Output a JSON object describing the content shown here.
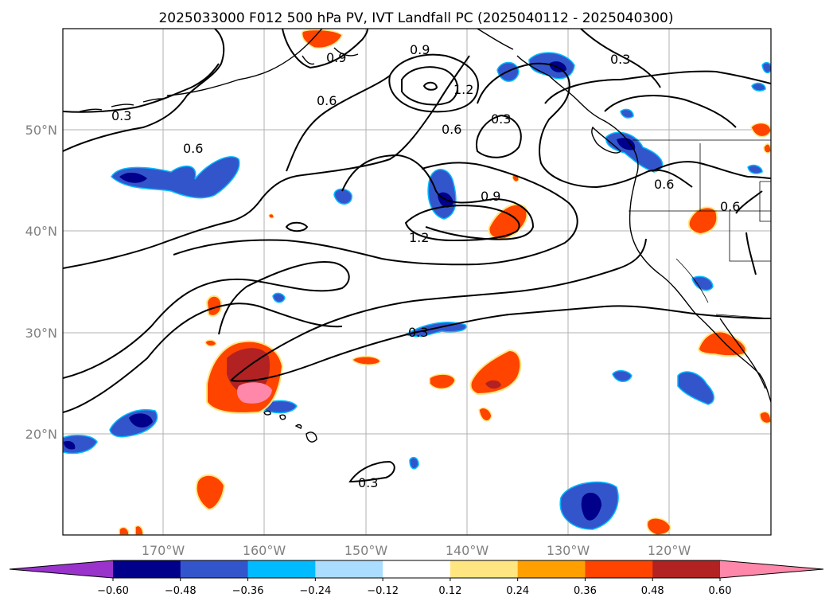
{
  "title": "2025033000 F012 500 hPa PV, IVT Landfall PC (2025040112 - 2025040300)",
  "lat_ticks": [
    "50°N",
    "40°N",
    "30°N",
    "20°N"
  ],
  "lon_ticks": [
    "170°W",
    "160°W",
    "150°W",
    "140°W",
    "130°W",
    "120°W"
  ],
  "colorbar": {
    "ticks": [
      "−0.60",
      "−0.48",
      "−0.36",
      "−0.24",
      "−0.12",
      "0.12",
      "0.24",
      "0.36",
      "0.48",
      "0.60"
    ],
    "colors": [
      "#9933cc",
      "#00008b",
      "#3355cc",
      "#00bbff",
      "#aaddff",
      "#ffffff",
      "#ffe680",
      "#ffa000",
      "#ff4400",
      "#b22222",
      "#ff88aa"
    ]
  },
  "contour_labels": [
    "0.9",
    "0.9",
    "0.6",
    "1.2",
    "0.6",
    "0.3",
    "0.3",
    "0.6",
    "0.3",
    "0.6",
    "0.9",
    "1.2",
    "0.6",
    "0.6",
    "0.3",
    "0.3"
  ],
  "colors": {
    "positive_shading": [
      "#ffe680",
      "#ffa000",
      "#ff4400",
      "#b22222",
      "#ff88aa"
    ],
    "negative_shading": [
      "#aaddff",
      "#00bbff",
      "#3355cc",
      "#00008b"
    ]
  }
}
